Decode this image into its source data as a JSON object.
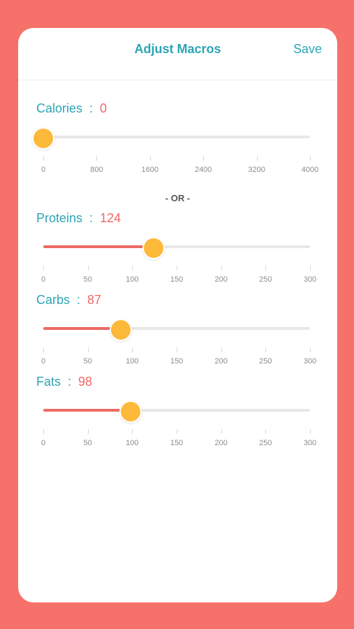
{
  "header": {
    "title": "Adjust Macros",
    "save_label": "Save"
  },
  "divider": {
    "or_label": "- OR -"
  },
  "label_separator": ":",
  "colors": {
    "background": "#F5716A",
    "accent_teal": "#2BA5B5",
    "value_red": "#EE6A64",
    "thumb_orange": "#FDB93A",
    "track_gray": "#E8E8E8"
  },
  "sliders": [
    {
      "key": "calories",
      "label": "Calories",
      "value": "0",
      "level": 0,
      "max": 4000,
      "ticks": [
        "0",
        "800",
        "1600",
        "2400",
        "3200",
        "4000"
      ]
    },
    {
      "key": "proteins",
      "label": "Proteins",
      "value": "124",
      "level": 124,
      "max": 300,
      "ticks": [
        "0",
        "50",
        "100",
        "150",
        "200",
        "250",
        "300"
      ]
    },
    {
      "key": "carbs",
      "label": "Carbs",
      "value": "87",
      "level": 87,
      "max": 300,
      "ticks": [
        "0",
        "50",
        "100",
        "150",
        "200",
        "250",
        "300"
      ]
    },
    {
      "key": "fats",
      "label": "Fats",
      "value": "98",
      "level": 98,
      "max": 300,
      "ticks": [
        "0",
        "50",
        "100",
        "150",
        "200",
        "250",
        "300"
      ]
    }
  ]
}
